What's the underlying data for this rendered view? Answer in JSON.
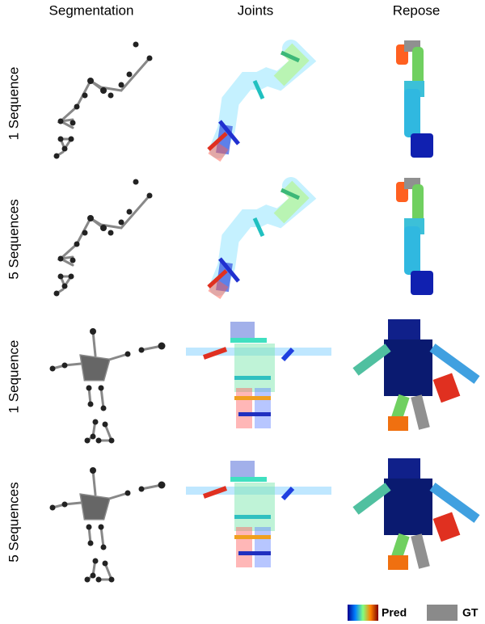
{
  "header": {
    "columns": [
      "Segmentation",
      "Joints",
      "Repose"
    ]
  },
  "rows": [
    {
      "label": "1 Sequence"
    },
    {
      "label": "5 Sequences"
    },
    {
      "label": "1 Sequence"
    },
    {
      "label": "5 Sequences"
    }
  ],
  "legend": {
    "pred": "Pred",
    "gt": "GT"
  }
}
